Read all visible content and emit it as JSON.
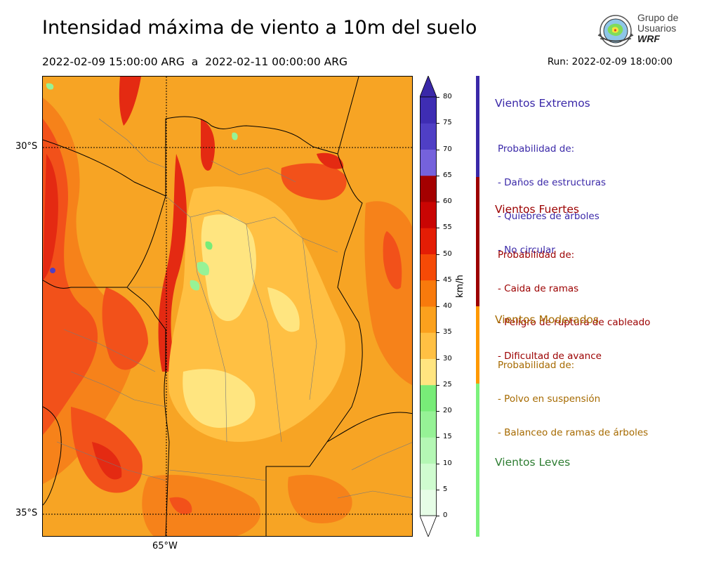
{
  "header": {
    "title": "Intensidad máxima de viento a 10m del suelo",
    "subtitle": "2022-02-09 15:00:00 ARG  a  2022-02-11 00:00:00 ARG",
    "run": "Run: 2022-02-09 18:00:00"
  },
  "logo": {
    "line1": "Grupo de",
    "line2": "Usuarios",
    "line3": "WRF"
  },
  "map": {
    "lat_labels": [
      "30°S",
      "35°S"
    ],
    "lon_labels": [
      "65°W"
    ],
    "base_color": "#f7a424"
  },
  "colorbar": {
    "unit": "km/h",
    "ticks": [
      "0",
      "5",
      "10",
      "15",
      "20",
      "25",
      "30",
      "35",
      "40",
      "45",
      "50",
      "55",
      "60",
      "65",
      "70",
      "75",
      "80"
    ],
    "bin_colors": [
      "#e6fde6",
      "#cffccf",
      "#b4f7b4",
      "#96f296",
      "#78ec78",
      "#ffe580",
      "#ffc043",
      "#fba11d",
      "#f87a0c",
      "#f54a06",
      "#e41d05",
      "#c90503",
      "#a40000",
      "#7562dc",
      "#4f3fc5",
      "#3e2db3"
    ],
    "top_color": "#3a28a8"
  },
  "categories": [
    {
      "title": "Vientos Extremos",
      "color": "#3a28a8",
      "lines": [
        "Probabilidad de:",
        "- Daños de estructuras",
        "- Quiebres de árboles",
        "- No circular"
      ]
    },
    {
      "title": "Vientos Fuertes",
      "color": "#9c0000",
      "lines": [
        "Probabilidad de:",
        "- Caida de ramas",
        "- Peligro de ruptura de cableado",
        "- Dificultad de avance"
      ]
    },
    {
      "title": "Vientos Moderados",
      "color": "#a66a00",
      "bar_color": "#ff9900",
      "lines": [
        "Probabilidad de:",
        "- Polvo en suspensión",
        "- Balanceo de ramas de árboles"
      ]
    },
    {
      "title": "Vientos Leves",
      "color": "#2e7d32",
      "bar_color": "#7cf27c",
      "lines": []
    }
  ]
}
